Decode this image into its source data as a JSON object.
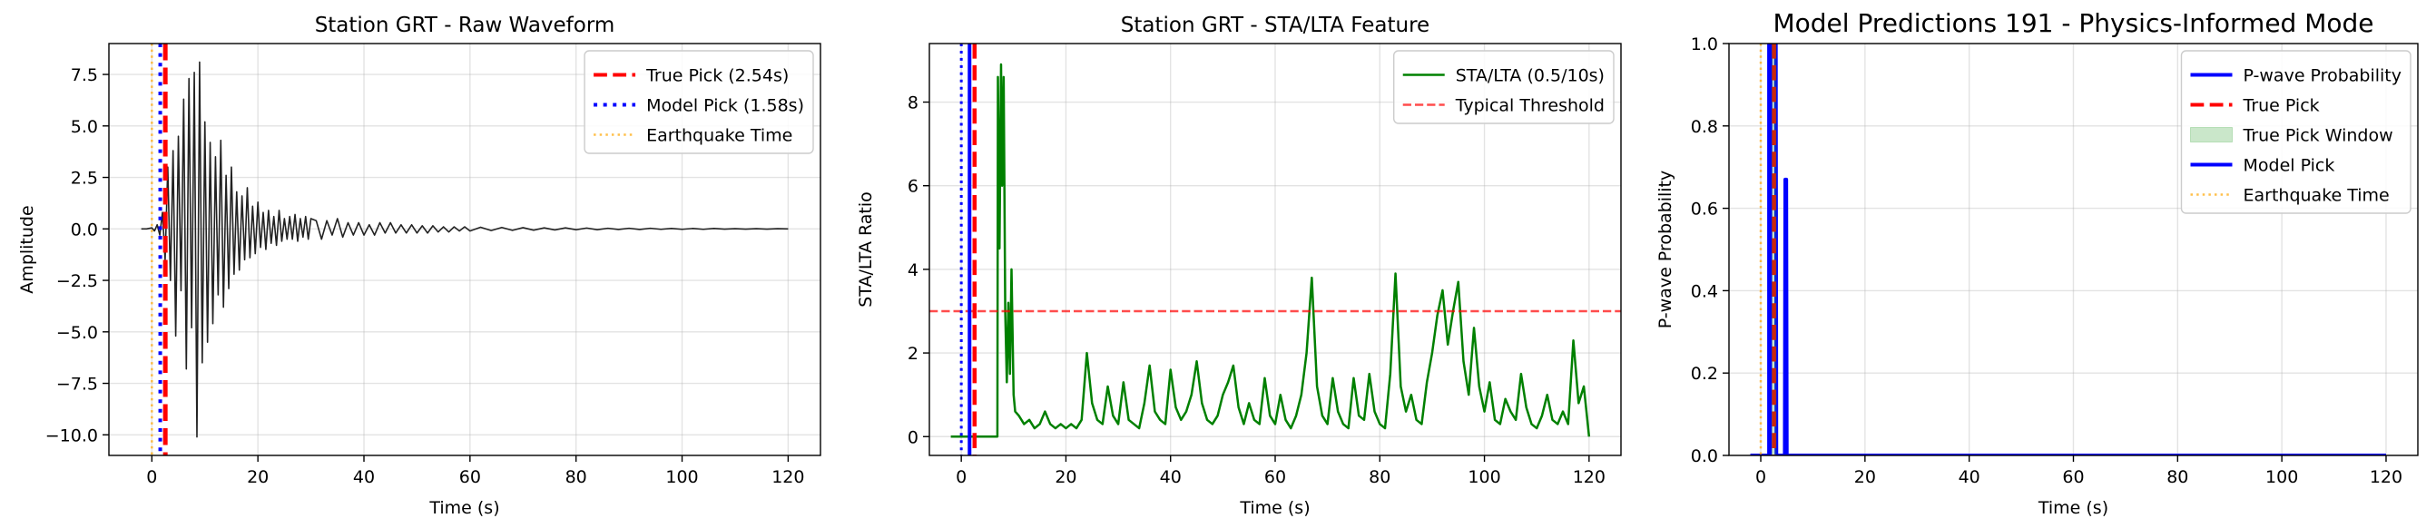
{
  "chart_data": [
    {
      "type": "line",
      "title": "Station GRT - Raw Waveform",
      "xlabel": "Time (s)",
      "ylabel": "Amplitude",
      "xlim": [
        -8.1,
        126.1
      ],
      "ylim": [
        -11,
        9
      ],
      "xticks": [
        0,
        20,
        40,
        60,
        80,
        100,
        120
      ],
      "yticks": [
        {
          "value": -10,
          "label": "−10.0"
        },
        {
          "value": -7.5,
          "label": "−7.5"
        },
        {
          "value": -5,
          "label": "−5.0"
        },
        {
          "value": -2.5,
          "label": "−2.5"
        },
        {
          "value": 0,
          "label": "0.0"
        },
        2.5,
        {
          "value": 5,
          "label": "5.0"
        },
        7.5
      ],
      "grid": true,
      "legend": "upper right",
      "series": [
        {
          "kind": "line",
          "color": "#222222",
          "style": "solid",
          "x": [
            -2,
            -1,
            0,
            0.5,
            1,
            1.5,
            2,
            2.5,
            3,
            3.5,
            4,
            4.5,
            5,
            5.5,
            6,
            6.5,
            7,
            7.5,
            8,
            8.5,
            9,
            9.5,
            10,
            10.5,
            11,
            11.5,
            12,
            12.5,
            13,
            13.5,
            14,
            14.5,
            15,
            15.5,
            16,
            16.5,
            17,
            17.5,
            18,
            18.5,
            19,
            19.5,
            20,
            20.5,
            21,
            21.5,
            22,
            22.5,
            23,
            23.5,
            24,
            24.5,
            25,
            25.5,
            26,
            26.5,
            27,
            27.5,
            28,
            28.5,
            29,
            29.5,
            30,
            31,
            32,
            33,
            34,
            35,
            36,
            37,
            38,
            39,
            40,
            41,
            42,
            43,
            44,
            45,
            46,
            47,
            48,
            49,
            50,
            51,
            52,
            53,
            54,
            55,
            56,
            57,
            58,
            59,
            60,
            62,
            64,
            66,
            68,
            70,
            72,
            74,
            76,
            78,
            80,
            82,
            84,
            86,
            88,
            90,
            92,
            94,
            96,
            98,
            100,
            102,
            104,
            106,
            108,
            110,
            112,
            114,
            116,
            118,
            120
          ],
          "values": [
            0,
            0,
            0.05,
            -0.1,
            0.2,
            -0.3,
            0.8,
            -1.5,
            3,
            -2.5,
            3.8,
            -5.2,
            4.5,
            -3,
            6.3,
            -6.8,
            7.3,
            -4.8,
            7.6,
            -10.1,
            8.1,
            -6.5,
            5.2,
            -5.5,
            4.2,
            -4.6,
            3.5,
            -3.2,
            4.3,
            -3.8,
            2.6,
            -2.9,
            3,
            -2.2,
            1.8,
            -2,
            1.6,
            -1.5,
            2,
            -1.4,
            1.1,
            -1.2,
            1.3,
            -0.9,
            0.8,
            -1,
            0.9,
            -0.7,
            0.6,
            -0.8,
            0.9,
            -0.6,
            0.5,
            -0.5,
            0.6,
            -0.5,
            0.7,
            -0.6,
            0.5,
            -0.4,
            0.6,
            -0.5,
            0.5,
            0.4,
            -0.5,
            0.4,
            -0.3,
            0.5,
            -0.4,
            0.3,
            -0.3,
            0.3,
            -0.3,
            0.2,
            -0.3,
            0.3,
            -0.2,
            0.3,
            -0.2,
            0.2,
            -0.2,
            0.2,
            -0.2,
            0.15,
            -0.2,
            0.15,
            -0.15,
            0.1,
            -0.15,
            0.1,
            -0.1,
            0.1,
            -0.1,
            0.08,
            -0.08,
            0.07,
            -0.07,
            0.06,
            -0.06,
            0.05,
            -0.05,
            0.05,
            -0.04,
            0.04,
            -0.04,
            0.03,
            -0.03,
            0.03,
            -0.03,
            0.03,
            -0.02,
            0.02,
            -0.02,
            0.02,
            -0.02,
            0.02,
            -0.01,
            0.01,
            -0.01,
            0.01,
            -0.01,
            0.01,
            0
          ]
        },
        {
          "kind": "vline",
          "name": "True Pick (2.54s)",
          "x": 2.54,
          "color": "#ff0000",
          "style": "dashed"
        },
        {
          "kind": "vline",
          "name": "Model Pick (1.58s)",
          "x": 1.58,
          "color": "#0000ff",
          "style": "dotted"
        },
        {
          "kind": "vline",
          "name": "Earthquake Time",
          "x": 0,
          "color": "#ffa500b3",
          "style": "dotted"
        }
      ]
    },
    {
      "type": "line",
      "title": "Station GRT - STA/LTA Feature",
      "xlabel": "Time (s)",
      "ylabel": "STA/LTA Ratio",
      "xlim": [
        -6.1,
        126.1
      ],
      "ylim": [
        -0.45,
        9.4
      ],
      "xticks": [
        0,
        20,
        40,
        60,
        80,
        100,
        120
      ],
      "yticks": [
        0,
        2,
        4,
        6,
        8
      ],
      "grid": true,
      "legend": "upper right",
      "series": [
        {
          "kind": "line",
          "name": "STA/LTA (0.5/10s)",
          "color": "#008000",
          "style": "solid",
          "x": [
            -2,
            6.9,
            7,
            7.3,
            7.6,
            7.8,
            8.1,
            8.4,
            8.7,
            9,
            9.3,
            9.6,
            10,
            10.3,
            11,
            12,
            13,
            14,
            15,
            16,
            17,
            18,
            19,
            20,
            21,
            22,
            23,
            24,
            25,
            26,
            27,
            28,
            29,
            30,
            31,
            32,
            33,
            34,
            35,
            36,
            37,
            38,
            39,
            40,
            41,
            42,
            43,
            44,
            45,
            46,
            47,
            48,
            49,
            50,
            51,
            52,
            53,
            54,
            55,
            56,
            57,
            58,
            59,
            60,
            61,
            62,
            63,
            64,
            65,
            66,
            67,
            68,
            69,
            70,
            71,
            72,
            73,
            74,
            75,
            76,
            77,
            78,
            79,
            80,
            81,
            82,
            83,
            84,
            85,
            86,
            87,
            88,
            89,
            90,
            91,
            92,
            93,
            94,
            95,
            96,
            97,
            98,
            99,
            100,
            101,
            102,
            103,
            104,
            105,
            106,
            107,
            108,
            109,
            110,
            111,
            112,
            113,
            114,
            115,
            116,
            117,
            118,
            119,
            120
          ],
          "values": [
            0,
            0,
            8.6,
            4.5,
            8.9,
            6,
            8.6,
            3,
            1.3,
            3.2,
            1.5,
            4,
            1,
            0.6,
            0.5,
            0.3,
            0.4,
            0.2,
            0.3,
            0.6,
            0.3,
            0.2,
            0.3,
            0.2,
            0.3,
            0.2,
            0.4,
            2.0,
            0.8,
            0.4,
            0.3,
            1.2,
            0.5,
            0.3,
            1.3,
            0.4,
            0.3,
            0.2,
            0.8,
            1.7,
            0.6,
            0.4,
            0.3,
            1.6,
            0.7,
            0.4,
            0.6,
            1.0,
            1.8,
            0.8,
            0.4,
            0.3,
            0.5,
            1.0,
            1.3,
            1.7,
            0.7,
            0.3,
            0.8,
            0.4,
            0.3,
            1.4,
            0.5,
            0.3,
            1.0,
            0.4,
            0.2,
            0.5,
            1.0,
            2.0,
            3.8,
            1.2,
            0.5,
            0.3,
            1.4,
            0.6,
            0.3,
            0.2,
            1.4,
            0.5,
            0.4,
            1.5,
            0.6,
            0.3,
            0.2,
            1.5,
            3.9,
            1.2,
            0.6,
            1.0,
            0.4,
            0.3,
            1.3,
            2.0,
            2.9,
            3.5,
            2.2,
            3.0,
            3.7,
            1.8,
            1.0,
            2.6,
            1.2,
            0.6,
            1.3,
            0.4,
            0.3,
            0.9,
            0.6,
            0.4,
            1.5,
            0.7,
            0.3,
            0.2,
            0.5,
            1.0,
            0.4,
            0.3,
            0.6,
            0.3,
            2.3,
            0.8,
            1.2,
            0
          ]
        },
        {
          "kind": "hline",
          "name": "Typical Threshold",
          "y": 3,
          "color": "#ff0000b3",
          "style": "dashed"
        },
        {
          "kind": "vline",
          "x": 0,
          "color": "#0000ff",
          "style": "dotted"
        },
        {
          "kind": "vline",
          "x": 1.58,
          "color": "#0000ff",
          "style": "solid"
        },
        {
          "kind": "vline",
          "x": 2.54,
          "color": "#ff0000",
          "style": "dashed"
        }
      ]
    },
    {
      "type": "line",
      "title": "Model Predictions 191 - Physics-Informed Mode",
      "xlabel": "Time (s)",
      "ylabel": "P-wave Probability",
      "xlim": [
        -6.1,
        126.1
      ],
      "ylim": [
        0,
        1
      ],
      "xticks": [
        0,
        20,
        40,
        60,
        80,
        100,
        120
      ],
      "yticks": [
        {
          "value": 0,
          "label": "0.0"
        },
        0.2,
        0.4,
        0.6,
        0.8,
        {
          "value": 1,
          "label": "1.0"
        }
      ],
      "grid": true,
      "legend": "upper right",
      "series": [
        {
          "kind": "line",
          "name": "P-wave Probability",
          "color": "#0000ff",
          "style": "solid",
          "x": [
            -2,
            1.8,
            1.9,
            2.9,
            3,
            4.6,
            4.7,
            4.9,
            5,
            120
          ],
          "values": [
            0,
            0,
            1,
            1,
            0,
            0,
            0.67,
            0.67,
            0,
            0
          ]
        },
        {
          "kind": "vline",
          "name": "True Pick",
          "x": 2.54,
          "color": "#ff0000",
          "style": "dashed"
        },
        {
          "kind": "span",
          "name": "True Pick Window",
          "x": [
            2.04,
            3.04
          ],
          "color": "#2ca02c40"
        },
        {
          "kind": "vline",
          "name": "Model Pick",
          "x": 1.58,
          "color": "#0000ff",
          "style": "solid"
        },
        {
          "kind": "vline",
          "name": "Earthquake Time",
          "x": 0,
          "color": "#ffa500b3",
          "style": "dotted"
        }
      ]
    }
  ]
}
